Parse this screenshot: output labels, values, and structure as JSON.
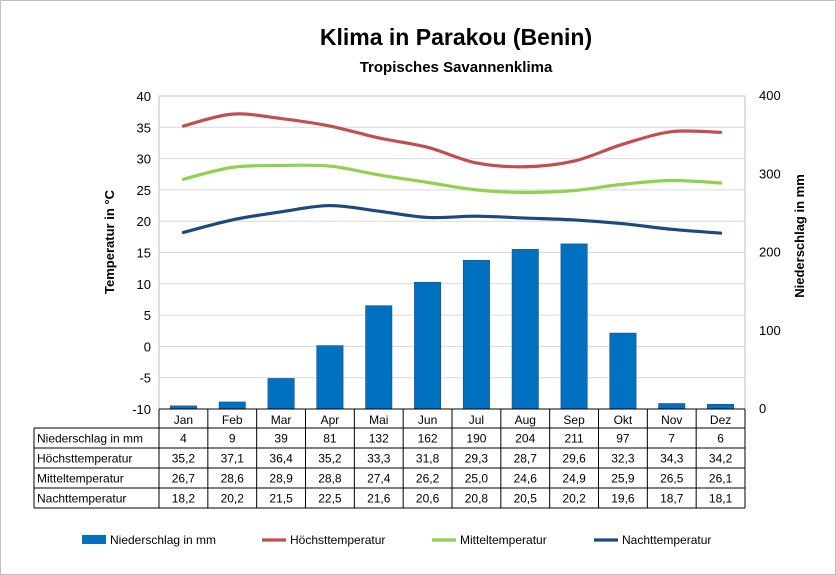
{
  "chart_data": {
    "type": "bar+line",
    "title": "Klima in Parakou (Benin)",
    "subtitle": "Tropisches Savannenklima",
    "ylabel_left": "Temperatur in °C",
    "ylabel_right": "Niederschlag in mm",
    "ylim_left": [
      -10,
      40
    ],
    "yticks_left": [
      "40",
      "35",
      "30",
      "25",
      "20",
      "15",
      "10",
      "5",
      "0",
      "-5",
      "-10"
    ],
    "ylim_right": [
      0,
      400
    ],
    "yticks_right": [
      "400",
      "300",
      "200",
      "100",
      "0"
    ],
    "categories": [
      "Jan",
      "Feb",
      "Mar",
      "Apr",
      "Mai",
      "Jun",
      "Jul",
      "Aug",
      "Sep",
      "Okt",
      "Nov",
      "Dez"
    ],
    "series": [
      {
        "name": "Niederschlag in mm",
        "kind": "bar",
        "axis": "right",
        "color": "#0070c0",
        "values": [
          4,
          9,
          39,
          81,
          132,
          162,
          190,
          204,
          211,
          97,
          7,
          6
        ],
        "labels": [
          "4",
          "9",
          "39",
          "81",
          "132",
          "162",
          "190",
          "204",
          "211",
          "97",
          "7",
          "6"
        ]
      },
      {
        "name": "Höchsttemperatur",
        "kind": "line",
        "axis": "left",
        "color": "#c0504d",
        "values": [
          35.2,
          37.1,
          36.4,
          35.2,
          33.3,
          31.8,
          29.3,
          28.7,
          29.6,
          32.3,
          34.3,
          34.2
        ],
        "labels": [
          "35,2",
          "37,1",
          "36,4",
          "35,2",
          "33,3",
          "31,8",
          "29,3",
          "28,7",
          "29,6",
          "32,3",
          "34,3",
          "34,2"
        ]
      },
      {
        "name": "Mitteltemperatur",
        "kind": "line",
        "axis": "left",
        "color": "#92d050",
        "values": [
          26.7,
          28.6,
          28.9,
          28.8,
          27.4,
          26.2,
          25.0,
          24.6,
          24.9,
          25.9,
          26.5,
          26.1
        ],
        "labels": [
          "26,7",
          "28,6",
          "28,9",
          "28,8",
          "27,4",
          "26,2",
          "25,0",
          "24,6",
          "24,9",
          "25,9",
          "26,5",
          "26,1"
        ]
      },
      {
        "name": "Nachttemperatur",
        "kind": "line",
        "axis": "left",
        "color": "#1f497d",
        "values": [
          18.2,
          20.2,
          21.5,
          22.5,
          21.6,
          20.6,
          20.8,
          20.5,
          20.2,
          19.6,
          18.7,
          18.1
        ],
        "labels": [
          "18,2",
          "20,2",
          "21,5",
          "22,5",
          "21,6",
          "20,6",
          "20,8",
          "20,5",
          "20,2",
          "19,6",
          "18,7",
          "18,1"
        ]
      }
    ],
    "grid": true,
    "legend": "bottom",
    "data_table": true
  }
}
